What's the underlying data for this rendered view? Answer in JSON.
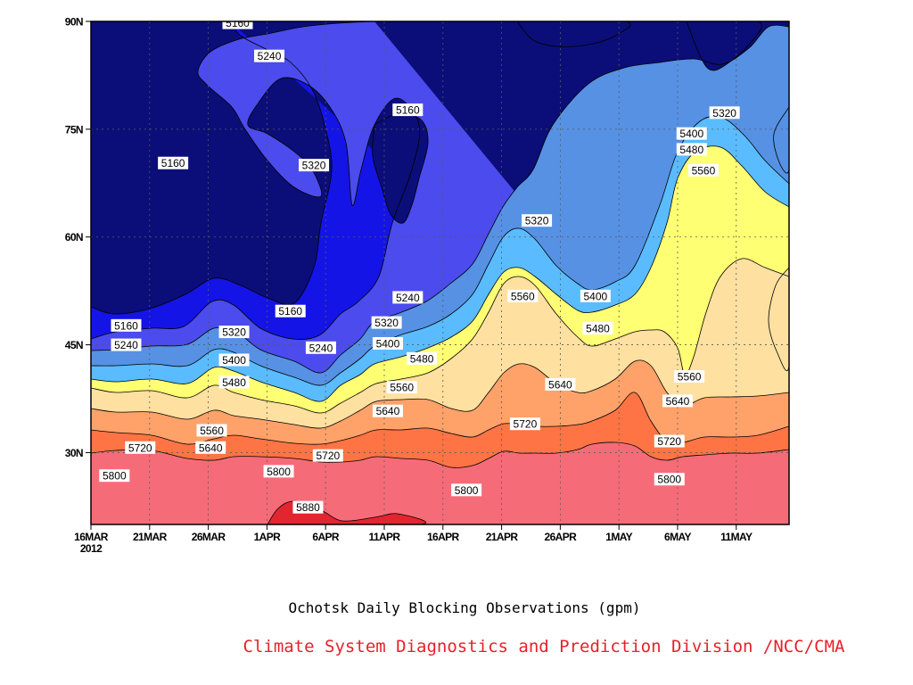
{
  "chart_data": {
    "type": "heatmap",
    "title": "Ochotsk Daily Blocking Observations (gpm)",
    "credit": "Climate System Diagnostics and Prediction Division /NCC/CMA",
    "credit_color": "#e8202a",
    "xlabel": "",
    "ylabel": "",
    "x_ticks": [
      "16MAR",
      "21MAR",
      "26MAR",
      "1APR",
      "6APR",
      "11APR",
      "16APR",
      "21APR",
      "26APR",
      "1MAY",
      "6MAY",
      "11MAY"
    ],
    "x_year_label": "2012",
    "x_tick_days": [
      0,
      5,
      10,
      15,
      20,
      25,
      30,
      35,
      40,
      45,
      50,
      55
    ],
    "xlim_days": [
      0,
      59.5
    ],
    "y_ticks": [
      "30N",
      "45N",
      "60N",
      "75N",
      "90N"
    ],
    "y_tick_values": [
      30,
      45,
      60,
      75,
      90
    ],
    "ylim": [
      20,
      90
    ],
    "grid": true,
    "contour_levels": [
      5160,
      5240,
      5320,
      5400,
      5480,
      5560,
      5640,
      5720,
      5800,
      5880
    ],
    "fill_colors": [
      "#0b0e78",
      "#1414e6",
      "#4b4bee",
      "#5691e4",
      "#5abcff",
      "#ffff73",
      "#fee0a0",
      "#ffa26a",
      "#ff7444",
      "#f56c78",
      "#e3252f"
    ],
    "contour_labels": [
      {
        "text": "5160",
        "day": 12.5,
        "lat": 89.8
      },
      {
        "text": "5240",
        "day": 15.2,
        "lat": 85.2
      },
      {
        "text": "5160",
        "day": 7.0,
        "lat": 70.3
      },
      {
        "text": "5320",
        "day": 19.0,
        "lat": 70.0
      },
      {
        "text": "5160",
        "day": 27.0,
        "lat": 77.7
      },
      {
        "text": "5320",
        "day": 38.0,
        "lat": 62.3
      },
      {
        "text": "5240",
        "day": 27.0,
        "lat": 51.6
      },
      {
        "text": "5160",
        "day": 17.0,
        "lat": 49.7
      },
      {
        "text": "5160",
        "day": 3.0,
        "lat": 47.7
      },
      {
        "text": "5240",
        "day": 3.0,
        "lat": 45.0
      },
      {
        "text": "5320",
        "day": 12.2,
        "lat": 46.8
      },
      {
        "text": "5240",
        "day": 19.6,
        "lat": 44.6
      },
      {
        "text": "5320",
        "day": 25.2,
        "lat": 48.1
      },
      {
        "text": "5400",
        "day": 25.3,
        "lat": 45.2
      },
      {
        "text": "5480",
        "day": 28.2,
        "lat": 43.1
      },
      {
        "text": "5400",
        "day": 12.2,
        "lat": 42.9
      },
      {
        "text": "5480",
        "day": 12.2,
        "lat": 39.8
      },
      {
        "text": "5560",
        "day": 26.5,
        "lat": 39.1
      },
      {
        "text": "5560",
        "day": 10.3,
        "lat": 33.1
      },
      {
        "text": "5640",
        "day": 10.2,
        "lat": 30.7
      },
      {
        "text": "5640",
        "day": 25.3,
        "lat": 35.8
      },
      {
        "text": "5720",
        "day": 4.2,
        "lat": 30.7
      },
      {
        "text": "5720",
        "day": 20.2,
        "lat": 29.6
      },
      {
        "text": "5800",
        "day": 2.0,
        "lat": 26.8
      },
      {
        "text": "5800",
        "day": 16.0,
        "lat": 27.4
      },
      {
        "text": "5880",
        "day": 18.5,
        "lat": 22.4
      },
      {
        "text": "5560",
        "day": 36.8,
        "lat": 51.8
      },
      {
        "text": "5400",
        "day": 43.0,
        "lat": 51.8
      },
      {
        "text": "5480",
        "day": 43.2,
        "lat": 47.3
      },
      {
        "text": "5640",
        "day": 40.0,
        "lat": 39.5
      },
      {
        "text": "5720",
        "day": 37.0,
        "lat": 34.0
      },
      {
        "text": "5800",
        "day": 32.0,
        "lat": 24.8
      },
      {
        "text": "5560",
        "day": 51.0,
        "lat": 40.6
      },
      {
        "text": "5640",
        "day": 50.0,
        "lat": 37.2
      },
      {
        "text": "5720",
        "day": 49.3,
        "lat": 31.6
      },
      {
        "text": "5800",
        "day": 49.3,
        "lat": 26.3
      },
      {
        "text": "5320",
        "day": 54.0,
        "lat": 77.3
      },
      {
        "text": "5400",
        "day": 51.2,
        "lat": 74.4
      },
      {
        "text": "5480",
        "day": 51.2,
        "lat": 72.2
      },
      {
        "text": "5560",
        "day": 52.2,
        "lat": 69.3
      }
    ]
  }
}
